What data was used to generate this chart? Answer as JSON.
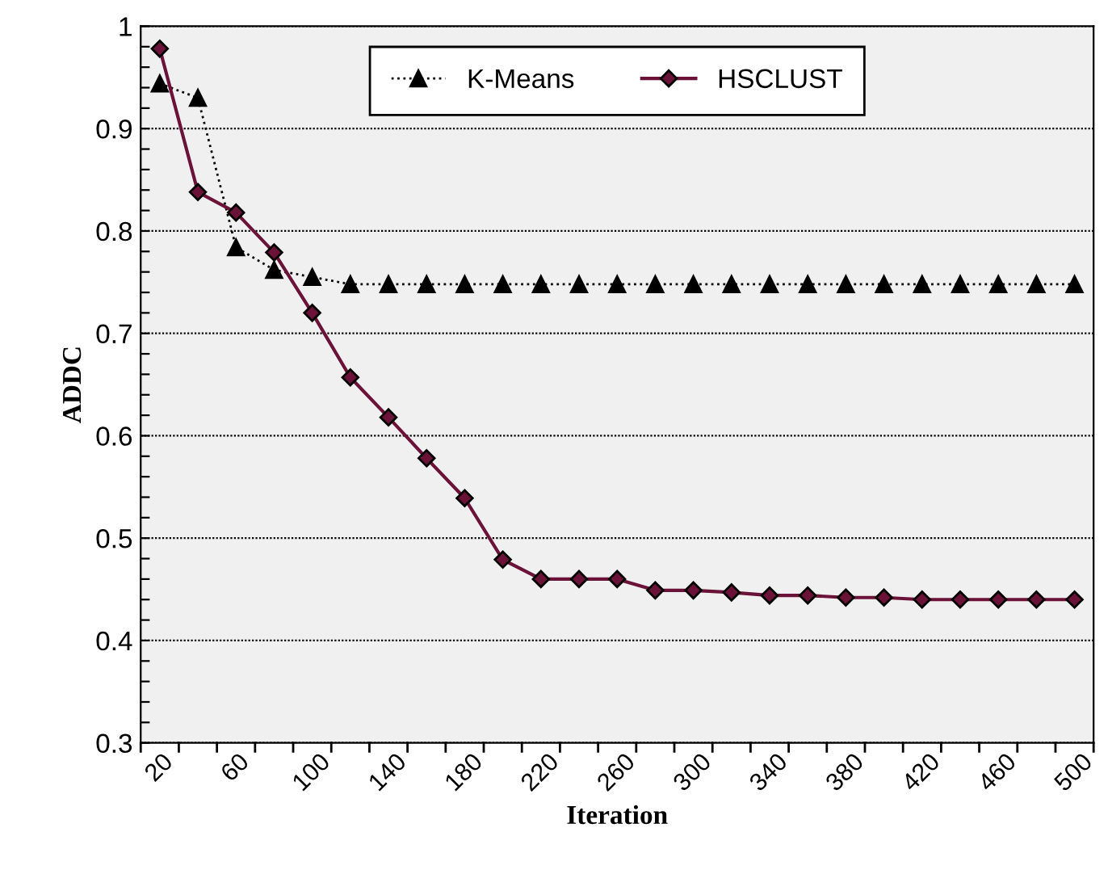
{
  "chart_data": {
    "type": "line",
    "xlabel": "Iteration",
    "ylabel": "ADDC",
    "categories": [
      "20",
      null,
      "60",
      null,
      "100",
      null,
      "140",
      null,
      "180",
      null,
      "220",
      null,
      "260",
      null,
      "300",
      null,
      "340",
      null,
      "380",
      null,
      "420",
      null,
      "460",
      null,
      "500"
    ],
    "series": [
      {
        "name": "K-Means",
        "color": "#000000",
        "marker": "triangle",
        "line_style": "dotted",
        "values": [
          0.944,
          0.93,
          0.784,
          0.762,
          0.755,
          0.748,
          0.748,
          0.748,
          0.748,
          0.748,
          0.748,
          0.748,
          0.748,
          0.748,
          0.748,
          0.748,
          0.748,
          0.748,
          0.748,
          0.748,
          0.748,
          0.748,
          0.748,
          0.748,
          0.748
        ]
      },
      {
        "name": "HSCLUST",
        "color": "#6b1238",
        "marker": "diamond",
        "line_style": "solid",
        "values": [
          0.978,
          0.838,
          0.818,
          0.779,
          0.72,
          0.657,
          0.618,
          0.578,
          0.539,
          0.479,
          0.46,
          0.46,
          0.46,
          0.449,
          0.449,
          0.447,
          0.444,
          0.444,
          0.442,
          0.442,
          0.44,
          0.44,
          0.44,
          0.44,
          0.44
        ]
      }
    ],
    "ylim": [
      0.3,
      1
    ],
    "yticks": [
      0.3,
      {
        "value": 0.32,
        "label": null
      },
      {
        "value": 0.34,
        "label": null
      },
      {
        "value": 0.36,
        "label": null
      },
      {
        "value": 0.38,
        "label": null
      },
      0.4,
      {
        "value": 0.42,
        "label": null
      },
      {
        "value": 0.44,
        "label": null
      },
      {
        "value": 0.46,
        "label": null
      },
      {
        "value": 0.48,
        "label": null
      },
      0.5,
      {
        "value": 0.52,
        "label": null
      },
      {
        "value": 0.54,
        "label": null
      },
      {
        "value": 0.56,
        "label": null
      },
      {
        "value": 0.58,
        "label": null
      },
      0.6,
      {
        "value": 0.62,
        "label": null
      },
      {
        "value": 0.64,
        "label": null
      },
      {
        "value": 0.66,
        "label": null
      },
      {
        "value": 0.68,
        "label": null
      },
      0.7,
      {
        "value": 0.72,
        "label": null
      },
      {
        "value": 0.74,
        "label": null
      },
      {
        "value": 0.76,
        "label": null
      },
      {
        "value": 0.78,
        "label": null
      },
      0.8,
      {
        "value": 0.82,
        "label": null
      },
      {
        "value": 0.84,
        "label": null
      },
      {
        "value": 0.86,
        "label": null
      },
      {
        "value": 0.88,
        "label": null
      },
      0.9,
      {
        "value": 0.92,
        "label": null
      },
      {
        "value": 0.94,
        "label": null
      },
      {
        "value": 0.96,
        "label": null
      },
      {
        "value": 0.98,
        "label": null
      },
      1
    ],
    "grid": "y",
    "legend": "top"
  }
}
